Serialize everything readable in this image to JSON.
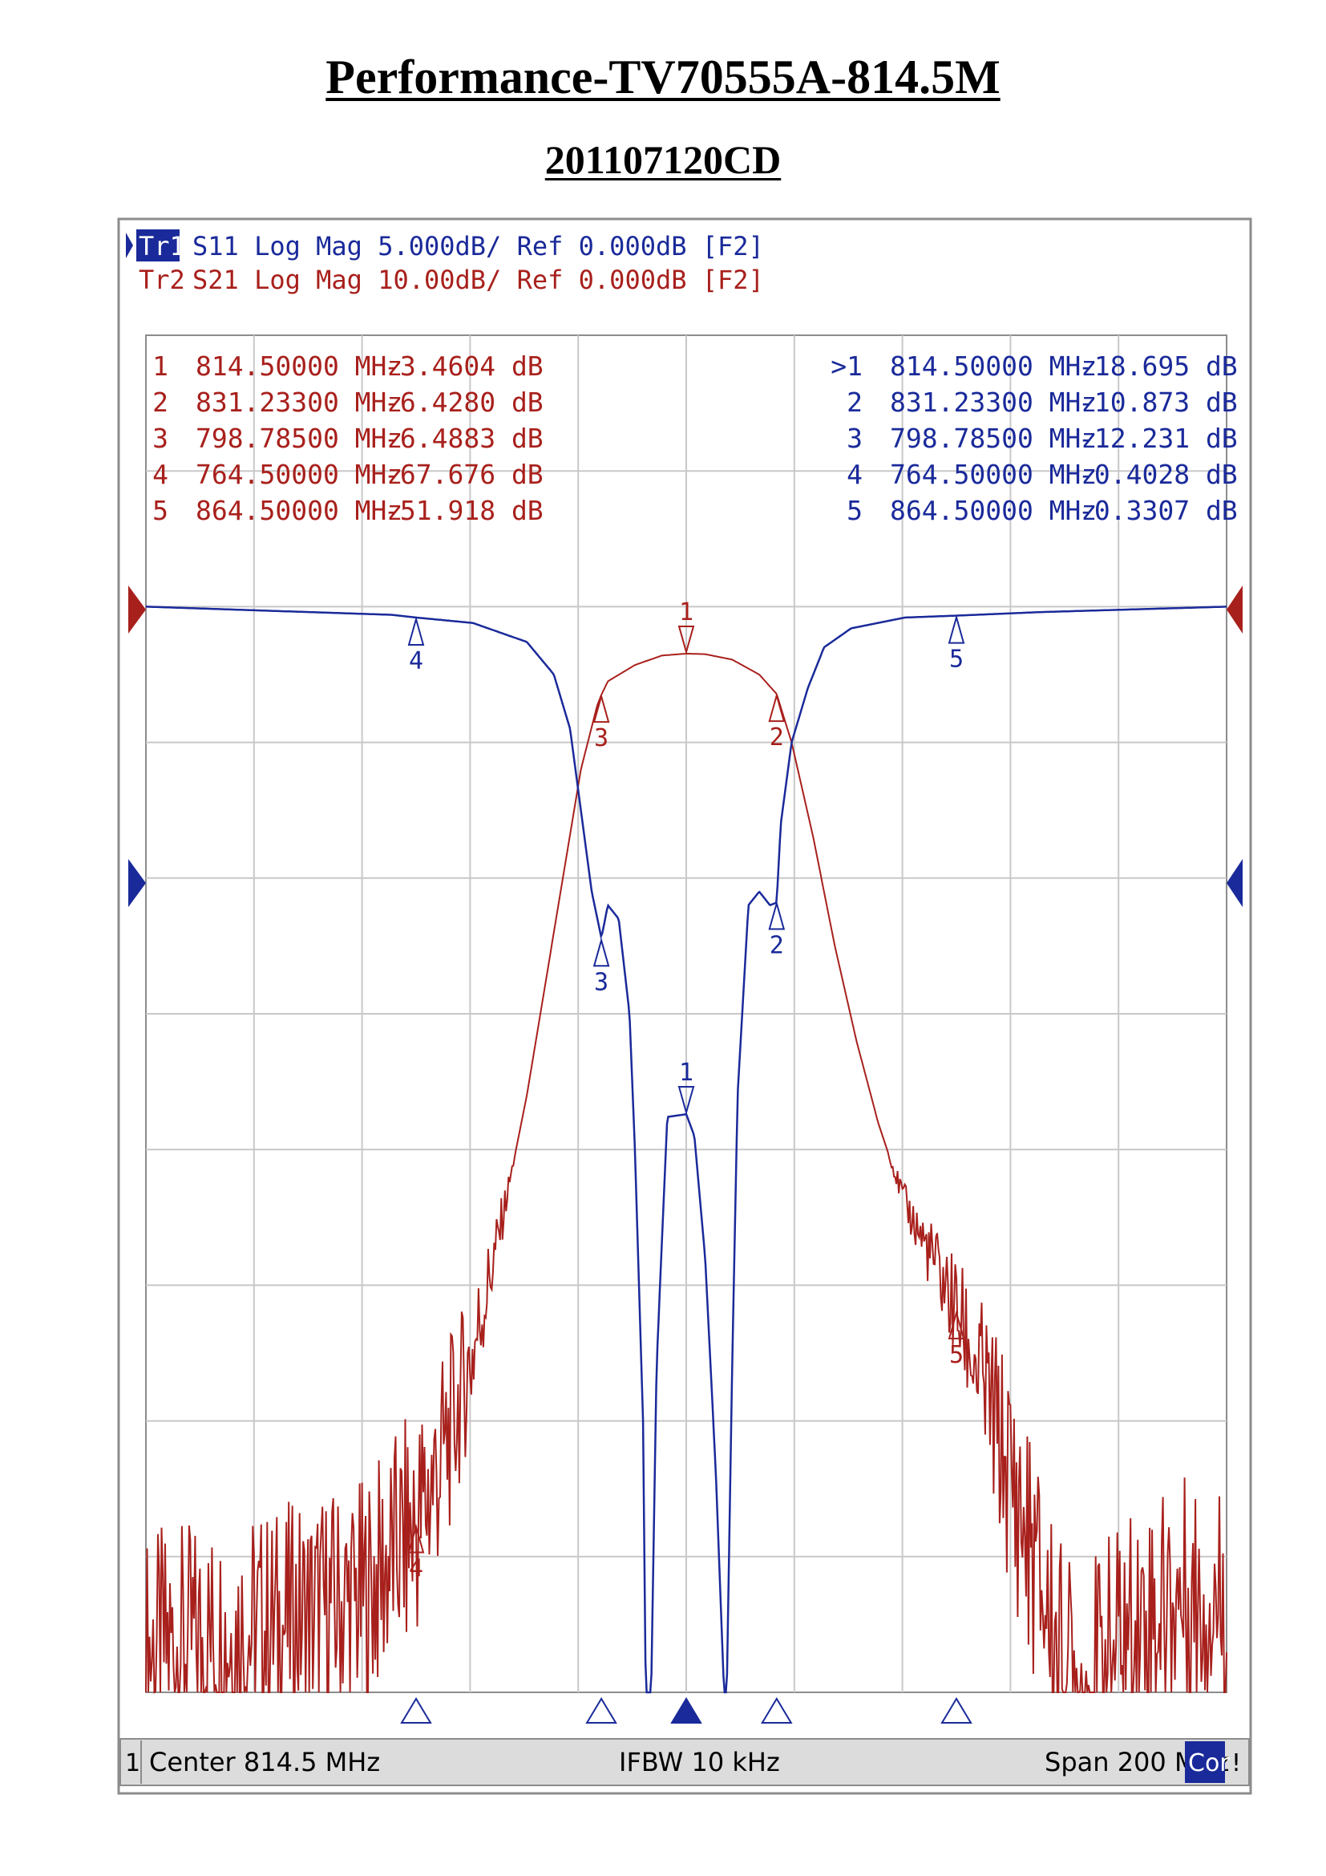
{
  "document": {
    "title": "Performance-TV70555A-814.5M",
    "subtitle": "201107120CD"
  },
  "colors": {
    "s21_trace": "#a8201c",
    "s11_trace": "#1a2a9a",
    "grid": "#c8c8c8",
    "frame": "#8c8c8c",
    "status_bar": "#dcdcdc",
    "cor_badge": "#1a2a9a"
  },
  "header": {
    "tr1": {
      "name": "Tr1",
      "text": "S11 Log Mag 5.000dB/ Ref 0.000dB [F2]"
    },
    "tr2": {
      "name": "Tr2",
      "text": "S21 Log Mag 10.00dB/ Ref 0.000dB [F2]"
    }
  },
  "markers_s21": [
    {
      "label": "1",
      "freq": "814.50000 MHz",
      "value": "-3.4604 dB"
    },
    {
      "label": "2",
      "freq": "831.23300 MHz",
      "value": "-6.4280 dB"
    },
    {
      "label": "3",
      "freq": "798.78500 MHz",
      "value": "-6.4883 dB"
    },
    {
      "label": "4",
      "freq": "764.50000 MHz",
      "value": "-67.676 dB"
    },
    {
      "label": "5",
      "freq": "864.50000 MHz",
      "value": "-51.918 dB"
    }
  ],
  "markers_s11": [
    {
      "label": ">1",
      "freq": "814.50000 MHz",
      "value": "-18.695 dB"
    },
    {
      "label": "2",
      "freq": "831.23300 MHz",
      "value": "-10.873 dB"
    },
    {
      "label": "3",
      "freq": "798.78500 MHz",
      "value": "-12.231 dB"
    },
    {
      "label": "4",
      "freq": "764.50000 MHz",
      "value": "-0.4028 dB"
    },
    {
      "label": "5",
      "freq": "864.50000 MHz",
      "value": "-0.3307 dB"
    }
  ],
  "status_bar": {
    "channel": "1",
    "center": "Center 814.5 MHz",
    "ifbw": "IFBW 10 kHz",
    "span": "Span 200 MHz",
    "cor": "Cor",
    "alert": "!"
  },
  "chart_data": {
    "type": "line",
    "xlim": [
      714.5,
      914.5
    ],
    "grid": true,
    "x_divisions": 10,
    "y_divisions": 10,
    "series": [
      {
        "name": "S21",
        "ylim": [
          -80,
          20
        ],
        "markers": [
          [
            814.5,
            -3.4604
          ],
          [
            831.233,
            -6.428
          ],
          [
            798.785,
            -6.4883
          ],
          [
            764.5,
            -67.676
          ],
          [
            864.5,
            -51.918
          ]
        ],
        "x": [
          714.5,
          740,
          755,
          760,
          764.5,
          770,
          775,
          780,
          785,
          790,
          795,
          798,
          798.785,
          800,
          805,
          810,
          814.5,
          818,
          823,
          828,
          831.233,
          834,
          838,
          842,
          846,
          850,
          855,
          860,
          864.5,
          870,
          875,
          880,
          884,
          888,
          895,
          905,
          914.5
        ],
        "y": [
          -77,
          -75,
          -73,
          -70,
          -67.7,
          -62,
          -55,
          -46,
          -36,
          -24,
          -12,
          -7.3,
          -6.49,
          -5.5,
          -4.3,
          -3.6,
          -3.46,
          -3.5,
          -3.9,
          -5,
          -6.43,
          -10,
          -17,
          -25,
          -32,
          -38,
          -44,
          -48,
          -51.9,
          -58,
          -65,
          -72,
          -78,
          -80,
          -76,
          -73,
          -73
        ]
      },
      {
        "name": "S11",
        "ylim": [
          -40,
          10
        ],
        "markers": [
          [
            814.5,
            -18.695
          ],
          [
            831.233,
            -10.873
          ],
          [
            798.785,
            -12.231
          ],
          [
            764.5,
            -0.4028
          ],
          [
            864.5,
            -0.3307
          ]
        ],
        "x": [
          714.5,
          760,
          764.5,
          775,
          785,
          790,
          793,
          795,
          797,
          798.785,
          800,
          802,
          804,
          805,
          806.5,
          807,
          808,
          809,
          811,
          814.5,
          816,
          818,
          820,
          821.5,
          822,
          823,
          824,
          826,
          828,
          830,
          831.233,
          832,
          834,
          837,
          840,
          845,
          855,
          864.5,
          880,
          914.5
        ],
        "y": [
          0,
          -0.3,
          -0.4,
          -0.6,
          -1.3,
          -2.5,
          -4.5,
          -7.5,
          -10.5,
          -12.2,
          -11,
          -11.5,
          -15,
          -20,
          -30,
          -40,
          -40,
          -28,
          -18.8,
          -18.7,
          -19.5,
          -24,
          -32,
          -40,
          -40,
          -28,
          -18,
          -11,
          -10.5,
          -11,
          -10.9,
          -8,
          -5,
          -3,
          -1.5,
          -0.8,
          -0.4,
          -0.33,
          -0.2,
          0
        ]
      }
    ]
  }
}
